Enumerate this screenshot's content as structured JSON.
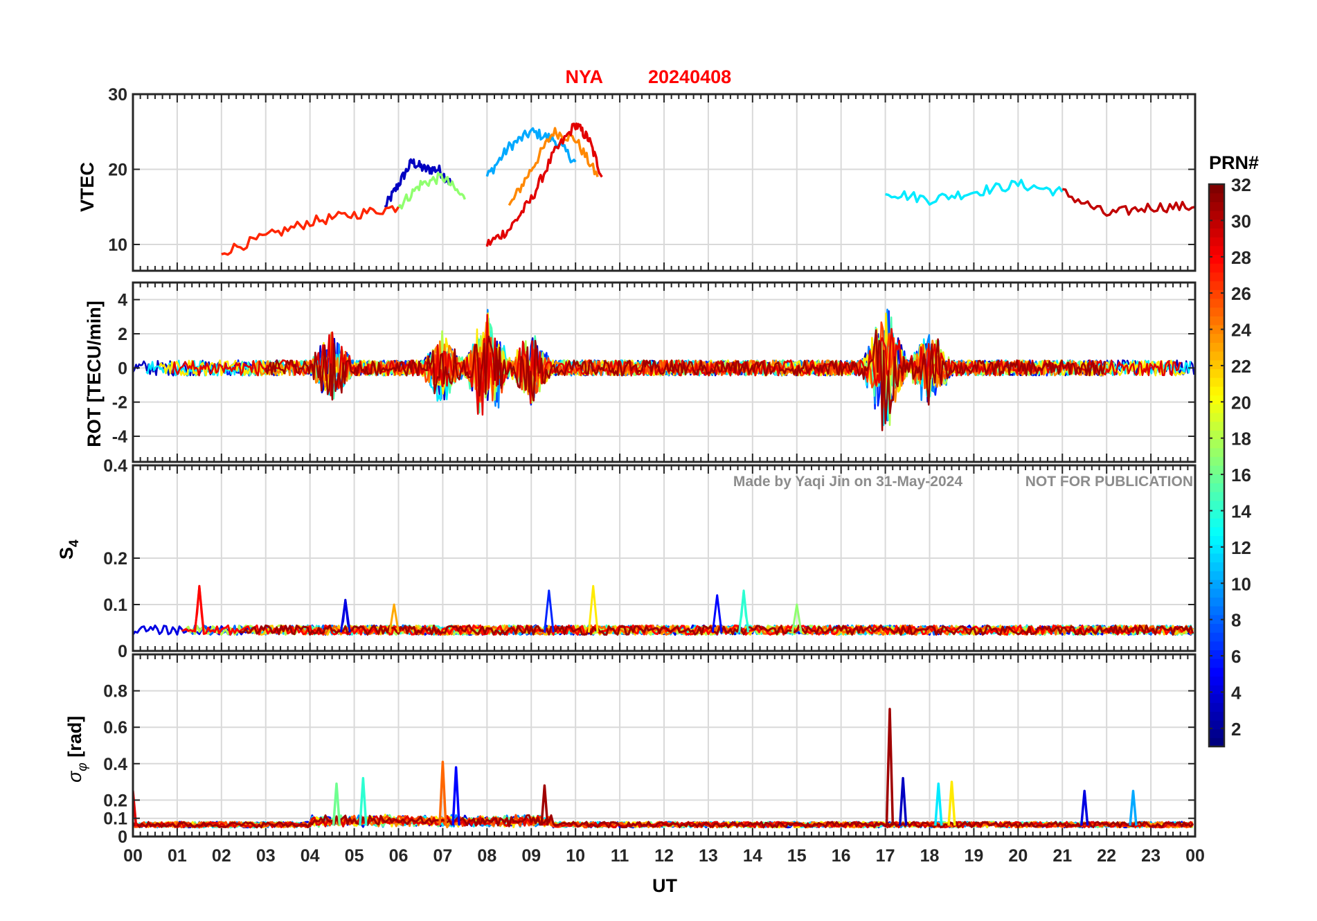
{
  "figure": {
    "title_station": "NYA",
    "title_date": "20240408",
    "title_color": "#ff0000",
    "watermark_author": "Made by Yaqi Jin on 31-May-2024",
    "watermark_notice": "NOT FOR PUBLICATION",
    "xlabel": "UT",
    "xticks": [
      "00",
      "01",
      "02",
      "03",
      "04",
      "05",
      "06",
      "07",
      "08",
      "09",
      "10",
      "11",
      "12",
      "13",
      "14",
      "15",
      "16",
      "17",
      "18",
      "19",
      "20",
      "21",
      "22",
      "23",
      "00"
    ],
    "colorbar": {
      "label": "PRN#",
      "colormap": "jet",
      "range": [
        1,
        32
      ],
      "ticks": [
        2,
        4,
        6,
        8,
        10,
        12,
        14,
        16,
        18,
        20,
        22,
        24,
        26,
        28,
        30,
        32
      ],
      "tick_labels": [
        "2",
        "4",
        "6",
        "8",
        "10",
        "12",
        "14",
        "16",
        "18",
        "20",
        "22",
        "24",
        "26",
        "28",
        "30",
        "32"
      ]
    }
  },
  "chart_data": [
    {
      "type": "line",
      "panel": "vtec",
      "ylabel": "VTEC",
      "xlim": [
        0,
        24
      ],
      "ylim": [
        6.5,
        30
      ],
      "yticks": [
        10,
        20,
        30
      ],
      "ytick_labels": [
        "10",
        "20",
        "30"
      ],
      "grid": true,
      "series": [
        {
          "prn": 3,
          "x": [
            5.7,
            6.0,
            6.3,
            6.6,
            6.9,
            7.2
          ],
          "y": [
            15,
            18,
            21,
            20,
            20,
            18
          ]
        },
        {
          "prn": 10,
          "x": [
            8.0,
            8.5,
            9.0,
            9.5,
            10.0
          ],
          "y": [
            19,
            23,
            25,
            24,
            21
          ]
        },
        {
          "prn": 24,
          "x": [
            8.5,
            9.0,
            9.5,
            10.0,
            10.5
          ],
          "y": [
            15,
            20,
            25,
            24,
            19
          ]
        },
        {
          "prn": 29,
          "x": [
            8.0,
            8.5,
            9.0,
            9.5,
            10.0,
            10.3,
            10.6
          ],
          "y": [
            10,
            12,
            16,
            22,
            26,
            24,
            19
          ]
        },
        {
          "prn": 17,
          "x": [
            6.0,
            6.5,
            7.0,
            7.5
          ],
          "y": [
            15,
            18,
            19,
            16
          ]
        },
        {
          "prn": 27,
          "x": [
            2.0,
            3.0,
            4.0,
            5.0,
            6.0
          ],
          "y": [
            9,
            11,
            13,
            14,
            15
          ]
        },
        {
          "prn": 12,
          "x": [
            17.0,
            18.0,
            19.0,
            20.0,
            21.0
          ],
          "y": [
            17,
            16,
            17,
            18,
            17
          ]
        },
        {
          "prn": 30,
          "x": [
            21.0,
            22.0,
            23.0,
            24.0
          ],
          "y": [
            17,
            14,
            15,
            15
          ]
        }
      ]
    },
    {
      "type": "line",
      "panel": "rot",
      "ylabel": "ROT [TECU/min]",
      "xlim": [
        0,
        24
      ],
      "ylim": [
        -5.5,
        5
      ],
      "yticks": [
        -4,
        -2,
        0,
        2,
        4
      ],
      "ytick_labels": [
        "-4",
        "-2",
        "0",
        "2",
        "4"
      ],
      "grid": true,
      "bursts": [
        {
          "x": 4.5,
          "amp": 2.5
        },
        {
          "x": 7.0,
          "amp": 2.5
        },
        {
          "x": 8.0,
          "amp": 4.2
        },
        {
          "x": 9.0,
          "amp": 2.5
        },
        {
          "x": 17.0,
          "amp": 4.3
        },
        {
          "x": 18.0,
          "amp": 2.8
        }
      ]
    },
    {
      "type": "line",
      "panel": "s4",
      "ylabel": "S4",
      "xlim": [
        0,
        24
      ],
      "ylim": [
        0,
        0.4
      ],
      "yticks": [
        0,
        0.1,
        0.2,
        0.4
      ],
      "ytick_labels": [
        "0",
        "0.1",
        "0.2",
        "0.4"
      ],
      "grid": true,
      "peaks": [
        {
          "x": 1.5,
          "y": 0.14,
          "prn": 28
        },
        {
          "x": 4.8,
          "y": 0.11,
          "prn": 4
        },
        {
          "x": 5.9,
          "y": 0.1,
          "prn": 23
        },
        {
          "x": 9.4,
          "y": 0.13,
          "prn": 6
        },
        {
          "x": 10.4,
          "y": 0.14,
          "prn": 21
        },
        {
          "x": 13.2,
          "y": 0.12,
          "prn": 5
        },
        {
          "x": 13.8,
          "y": 0.13,
          "prn": 14
        },
        {
          "x": 15.0,
          "y": 0.1,
          "prn": 17
        }
      ]
    },
    {
      "type": "line",
      "panel": "sigma_phi",
      "ylabel": "σφ [rad]",
      "xlim": [
        0,
        24
      ],
      "ylim": [
        0,
        1.0
      ],
      "yticks": [
        0,
        0.1,
        0.2,
        0.4,
        0.6,
        0.8
      ],
      "ytick_labels": [
        "0",
        "0.1",
        "0.2",
        "0.4",
        "0.6",
        "0.8"
      ],
      "grid": true,
      "peaks": [
        {
          "x": 0.0,
          "y": 0.25,
          "prn": 29
        },
        {
          "x": 4.6,
          "y": 0.29,
          "prn": 16
        },
        {
          "x": 5.2,
          "y": 0.32,
          "prn": 14
        },
        {
          "x": 7.0,
          "y": 0.41,
          "prn": 25
        },
        {
          "x": 7.3,
          "y": 0.38,
          "prn": 5
        },
        {
          "x": 9.3,
          "y": 0.28,
          "prn": 31
        },
        {
          "x": 17.1,
          "y": 0.7,
          "prn": 31
        },
        {
          "x": 17.4,
          "y": 0.32,
          "prn": 3
        },
        {
          "x": 18.2,
          "y": 0.29,
          "prn": 12
        },
        {
          "x": 18.5,
          "y": 0.3,
          "prn": 21
        },
        {
          "x": 21.5,
          "y": 0.25,
          "prn": 4
        },
        {
          "x": 22.6,
          "y": 0.25,
          "prn": 10
        }
      ]
    }
  ]
}
